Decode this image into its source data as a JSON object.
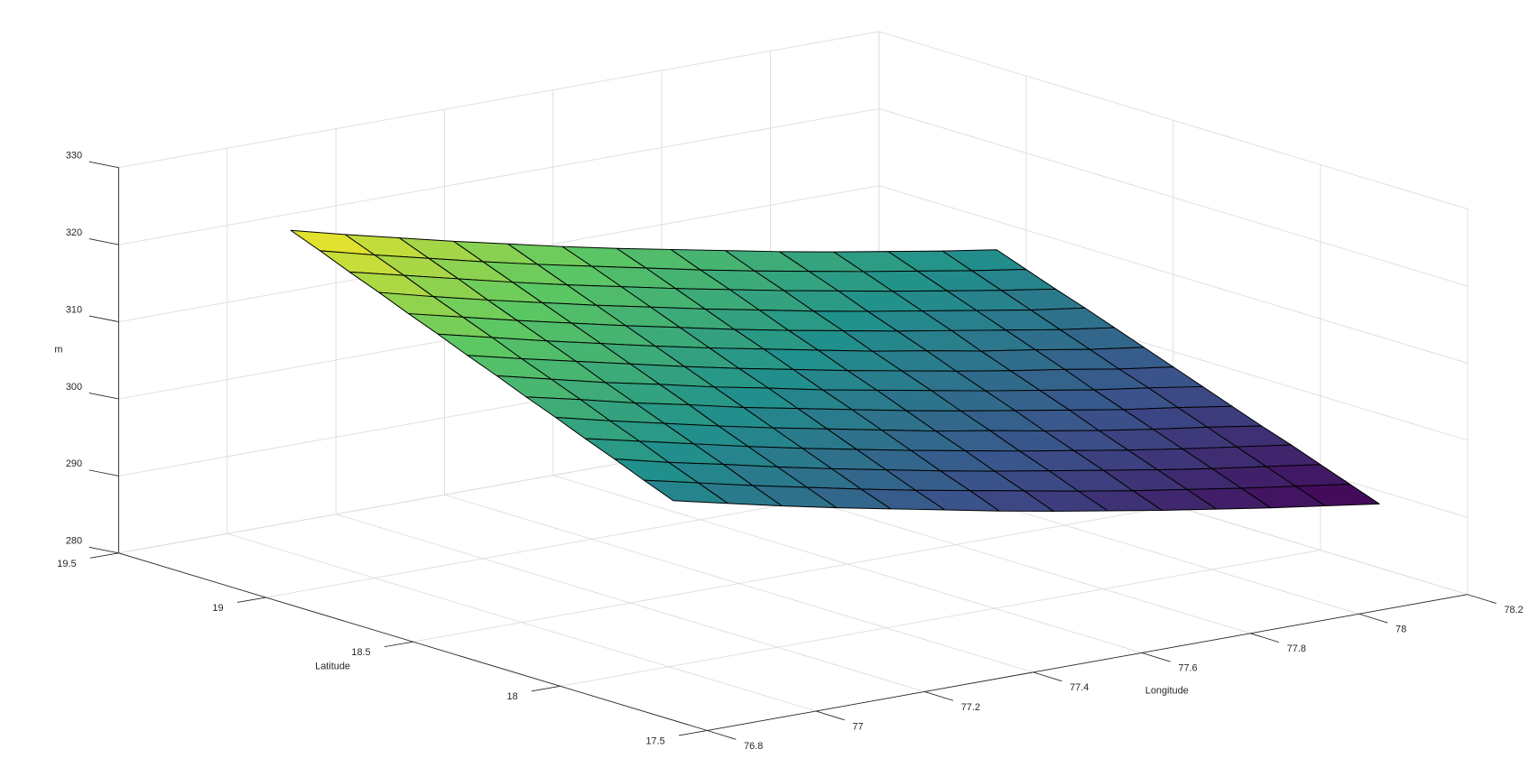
{
  "chart_data": {
    "type": "surface",
    "xlabel": "Longitude",
    "ylabel": "Latitude",
    "zlabel": "m",
    "x": [
      76.9,
      77.0,
      77.1,
      77.2,
      77.3,
      77.4,
      77.5,
      77.6,
      77.7,
      77.8,
      77.9,
      78.0,
      78.1,
      78.2
    ],
    "y": [
      17.8,
      17.9,
      18.0,
      18.1,
      18.2,
      18.3,
      18.4,
      18.5,
      18.6,
      18.7,
      18.8,
      18.9,
      19.0,
      19.1
    ],
    "z": [
      [
        305.1,
        303.5,
        301.9,
        300.4,
        299.0,
        297.6,
        296.2,
        294.9,
        293.7,
        292.5,
        291.4,
        290.3,
        289.3,
        288.3
      ],
      [
        306.6,
        305.0,
        303.4,
        301.9,
        300.4,
        299.0,
        297.7,
        296.4,
        295.1,
        293.9,
        292.8,
        291.7,
        290.7,
        289.7
      ],
      [
        308.2,
        306.5,
        305.0,
        303.4,
        301.9,
        300.5,
        299.1,
        297.8,
        296.6,
        295.4,
        294.2,
        293.1,
        292.1,
        291.1
      ],
      [
        309.7,
        308.1,
        306.5,
        304.9,
        303.4,
        302.0,
        300.6,
        299.3,
        298.0,
        296.8,
        295.6,
        294.5,
        293.5,
        292.5
      ],
      [
        311.3,
        309.6,
        308.0,
        306.4,
        304.9,
        303.5,
        302.1,
        300.7,
        299.5,
        298.2,
        297.0,
        295.9,
        294.9,
        293.8
      ],
      [
        312.8,
        311.2,
        309.5,
        308.0,
        306.4,
        305.0,
        303.6,
        302.2,
        300.9,
        299.7,
        298.5,
        297.3,
        296.3,
        295.2
      ],
      [
        314.4,
        312.7,
        311.0,
        309.5,
        307.9,
        306.5,
        305.0,
        303.7,
        302.4,
        301.1,
        299.9,
        298.7,
        297.7,
        296.6
      ],
      [
        315.9,
        314.2,
        312.6,
        311.0,
        309.4,
        307.9,
        306.5,
        305.1,
        303.8,
        302.5,
        301.3,
        300.2,
        299.0,
        298.0
      ],
      [
        317.5,
        315.8,
        314.1,
        312.5,
        310.9,
        309.4,
        308.0,
        306.6,
        305.2,
        304.0,
        302.7,
        301.6,
        300.4,
        299.4
      ],
      [
        319.0,
        317.3,
        315.6,
        314.0,
        312.4,
        310.9,
        309.4,
        308.0,
        306.7,
        305.4,
        304.2,
        303.0,
        301.8,
        300.8
      ],
      [
        320.6,
        318.8,
        317.1,
        315.5,
        313.9,
        312.4,
        310.9,
        309.5,
        308.1,
        306.8,
        305.6,
        304.4,
        303.2,
        302.2
      ],
      [
        322.1,
        320.4,
        318.7,
        317.0,
        315.4,
        313.9,
        312.4,
        311.0,
        309.6,
        308.3,
        307.0,
        305.8,
        304.6,
        303.5
      ],
      [
        323.7,
        321.9,
        320.2,
        318.5,
        316.9,
        315.4,
        313.9,
        312.4,
        311.0,
        309.7,
        308.4,
        307.2,
        306.0,
        304.9
      ],
      [
        325.2,
        323.4,
        321.7,
        320.0,
        318.4,
        316.8,
        315.3,
        313.9,
        312.5,
        311.1,
        309.8,
        308.6,
        307.4,
        306.3
      ]
    ],
    "xlim": [
      76.8,
      78.2
    ],
    "ylim": [
      17.5,
      19.5
    ],
    "zlim": [
      280,
      330
    ],
    "xticks": [
      76.8,
      77,
      77.2,
      77.4,
      77.6,
      77.8,
      78,
      78.2
    ],
    "yticks": [
      17.5,
      18,
      18.5,
      19,
      19.5
    ],
    "zticks": [
      280,
      290,
      300,
      310,
      320,
      330
    ],
    "colormap": "viridis",
    "edge_color": "#000000",
    "grid": true
  }
}
